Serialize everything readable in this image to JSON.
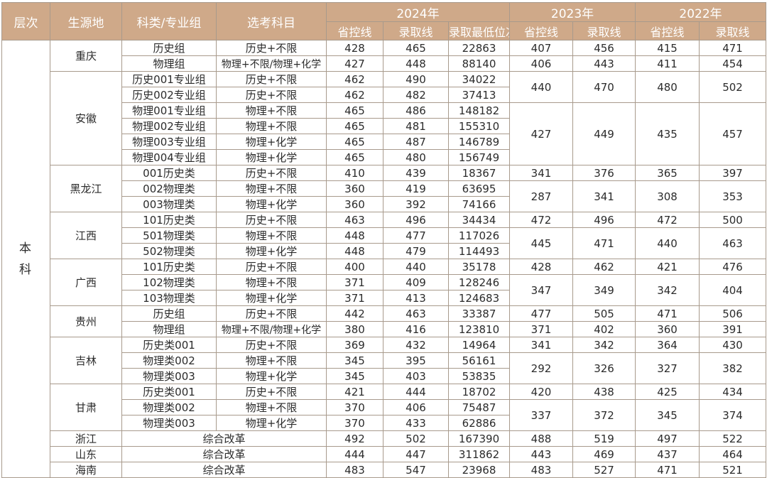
{
  "headers": {
    "level": "层次",
    "region": "生源地",
    "category": "科类/专业组",
    "subjects": "选考科目",
    "years": [
      "2024年",
      "2023年",
      "2022年"
    ],
    "provincial_line": "省控线",
    "admission_line": "录取线",
    "min_rank": "录取最低位次"
  },
  "level_chars": [
    "本",
    "科"
  ],
  "rows": [
    {
      "region": "重庆",
      "category": "历史组",
      "subjects": "历史+不限",
      "y2024": [
        "428",
        "465",
        "22863"
      ],
      "y2023": [
        "407",
        "456"
      ],
      "y2022": [
        "415",
        "471"
      ]
    },
    {
      "category": "物理组",
      "subjects": "物理+不限/物理+化学",
      "y2024": [
        "427",
        "448",
        "88140"
      ],
      "y2023": [
        "406",
        "443"
      ],
      "y2022": [
        "411",
        "454"
      ]
    },
    {
      "region": "安徽",
      "category": "历史001专业组",
      "subjects": "历史+不限",
      "y2024": [
        "462",
        "490",
        "34022"
      ],
      "y2023": [
        "440",
        "470"
      ],
      "y2022": [
        "480",
        "502"
      ]
    },
    {
      "category": "历史002专业组",
      "subjects": "历史+不限",
      "y2024": [
        "462",
        "482",
        "37413"
      ]
    },
    {
      "category": "物理001专业组",
      "subjects": "物理+不限",
      "y2024": [
        "465",
        "486",
        "148182"
      ],
      "y2023": [
        "427",
        "449"
      ],
      "y2022": [
        "435",
        "457"
      ]
    },
    {
      "category": "物理002专业组",
      "subjects": "物理+不限",
      "y2024": [
        "465",
        "481",
        "155310"
      ]
    },
    {
      "category": "物理003专业组",
      "subjects": "物理+化学",
      "y2024": [
        "465",
        "487",
        "146789"
      ]
    },
    {
      "category": "物理004专业组",
      "subjects": "物理+化学",
      "y2024": [
        "465",
        "480",
        "156749"
      ]
    },
    {
      "region": "黑龙江",
      "category": "001历史类",
      "subjects": "历史+不限",
      "y2024": [
        "410",
        "439",
        "18367"
      ],
      "y2023": [
        "341",
        "376"
      ],
      "y2022": [
        "365",
        "397"
      ]
    },
    {
      "category": "002物理类",
      "subjects": "物理+不限",
      "y2024": [
        "360",
        "419",
        "63695"
      ],
      "y2023": [
        "287",
        "341"
      ],
      "y2022": [
        "308",
        "353"
      ]
    },
    {
      "category": "003物理类",
      "subjects": "物理+化学",
      "y2024": [
        "360",
        "392",
        "74166"
      ]
    },
    {
      "region": "江西",
      "category": "101历史类",
      "subjects": "历史+不限",
      "y2024": [
        "463",
        "496",
        "34434"
      ],
      "y2023": [
        "472",
        "496"
      ],
      "y2022": [
        "472",
        "500"
      ]
    },
    {
      "category": "501物理类",
      "subjects": "物理+不限",
      "y2024": [
        "448",
        "477",
        "117026"
      ],
      "y2023": [
        "445",
        "471"
      ],
      "y2022": [
        "440",
        "463"
      ]
    },
    {
      "category": "502物理类",
      "subjects": "物理+化学",
      "y2024": [
        "448",
        "479",
        "114493"
      ]
    },
    {
      "region": "广西",
      "category": "101历史类",
      "subjects": "历史+不限",
      "y2024": [
        "400",
        "440",
        "35178"
      ],
      "y2023": [
        "428",
        "462"
      ],
      "y2022": [
        "421",
        "476"
      ]
    },
    {
      "category": "102物理类",
      "subjects": "物理+不限",
      "y2024": [
        "371",
        "409",
        "128246"
      ],
      "y2023": [
        "347",
        "349"
      ],
      "y2022": [
        "342",
        "404"
      ]
    },
    {
      "category": "103物理类",
      "subjects": "物理+化学",
      "y2024": [
        "371",
        "413",
        "124683"
      ]
    },
    {
      "region": "贵州",
      "category": "历史组",
      "subjects": "历史+不限",
      "y2024": [
        "442",
        "463",
        "33387"
      ],
      "y2023": [
        "477",
        "505"
      ],
      "y2022": [
        "471",
        "506"
      ]
    },
    {
      "category": "物理组",
      "subjects": "物理+不限/物理+化学",
      "y2024": [
        "380",
        "416",
        "123810"
      ],
      "y2023": [
        "371",
        "402"
      ],
      "y2022": [
        "360",
        "391"
      ]
    },
    {
      "region": "吉林",
      "category": "历史类001",
      "subjects": "历史+不限",
      "y2024": [
        "369",
        "432",
        "14964"
      ],
      "y2023": [
        "341",
        "342"
      ],
      "y2022": [
        "364",
        "430"
      ]
    },
    {
      "category": "物理类002",
      "subjects": "物理+不限",
      "y2024": [
        "345",
        "395",
        "56161"
      ],
      "y2023": [
        "292",
        "326"
      ],
      "y2022": [
        "327",
        "382"
      ]
    },
    {
      "category": "物理类003",
      "subjects": "物理+化学",
      "y2024": [
        "345",
        "403",
        "53835"
      ]
    },
    {
      "region": "甘肃",
      "category": "历史类001",
      "subjects": "历史+不限",
      "y2024": [
        "421",
        "444",
        "18702"
      ],
      "y2023": [
        "420",
        "438"
      ],
      "y2022": [
        "425",
        "434"
      ]
    },
    {
      "category": "物理类002",
      "subjects": "物理+不限",
      "y2024": [
        "370",
        "406",
        "75487"
      ],
      "y2023": [
        "337",
        "372"
      ],
      "y2022": [
        "345",
        "374"
      ]
    },
    {
      "category": "物理类003",
      "subjects": "物理+化学",
      "y2024": [
        "370",
        "433",
        "62886"
      ]
    },
    {
      "region": "浙江",
      "combined": "综合改革",
      "y2024": [
        "492",
        "502",
        "167390"
      ],
      "y2023": [
        "488",
        "519"
      ],
      "y2022": [
        "497",
        "522"
      ]
    },
    {
      "region": "山东",
      "combined": "综合改革",
      "y2024": [
        "444",
        "447",
        "311862"
      ],
      "y2023": [
        "443",
        "469"
      ],
      "y2022": [
        "437",
        "464"
      ]
    },
    {
      "region": "海南",
      "combined": "综合改革",
      "y2024": [
        "483",
        "547",
        "23968"
      ],
      "y2023": [
        "483",
        "527"
      ],
      "y2022": [
        "471",
        "521"
      ]
    }
  ],
  "colors": {
    "header_bg": "#cfa989",
    "header_text": "#ffffff",
    "border": "#a89a8c"
  }
}
